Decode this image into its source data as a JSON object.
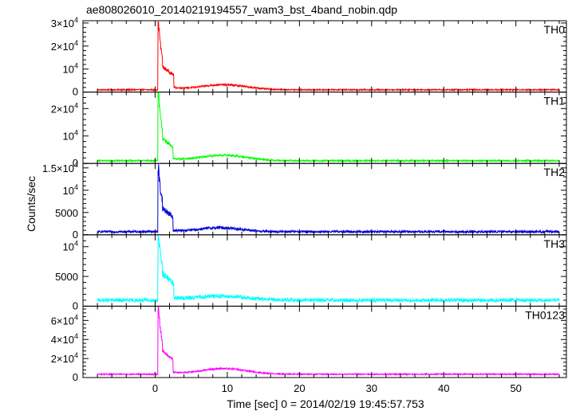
{
  "title": "ae808026010_20140219194557_wam3_bst_4band_nobin.qdp",
  "chart_data": {
    "type": "line",
    "title": "ae808026010_20140219194557_wam3_bst_4band_nobin.qdp",
    "xlabel": "Time [sec] 0 = 2014/02/19 19:45:57.753",
    "ylabel": "Counts/sec",
    "xlim": [
      -10,
      57
    ],
    "x_ticks": [
      0,
      10,
      20,
      30,
      40,
      50
    ],
    "x_data_range": [
      -8,
      56
    ],
    "panels": [
      {
        "name": "TH0",
        "color": "#ff0000",
        "ylim": [
          0,
          31000
        ],
        "y_ticks": [
          {
            "v": 0,
            "label": "0"
          },
          {
            "v": 10000,
            "label": "10",
            "sup": "4"
          },
          {
            "v": 20000,
            "label": "2×10",
            "sup": "4"
          },
          {
            "v": 30000,
            "label": "3×10",
            "sup": "4"
          }
        ],
        "profile": {
          "baseline": 1000,
          "noise": 250,
          "peak_t": 0.5,
          "peak": 30000,
          "plateau": 11000,
          "plateau_t": [
            1.0,
            2.6
          ],
          "drop_to": 1800,
          "bump_center": 9.5,
          "bump_sigma": 4.5,
          "bump_amp": 2200
        }
      },
      {
        "name": "TH1",
        "color": "#00ff00",
        "ylim": [
          0,
          26000
        ],
        "y_ticks": [
          {
            "v": 0,
            "label": "0"
          },
          {
            "v": 10000,
            "label": "10",
            "sup": "4"
          },
          {
            "v": 20000,
            "label": "2×10",
            "sup": "4"
          }
        ],
        "profile": {
          "baseline": 1000,
          "noise": 250,
          "peak_t": 0.5,
          "peak": 25000,
          "plateau": 9000,
          "plateau_t": [
            1.0,
            2.5
          ],
          "drop_to": 1600,
          "bump_center": 9.5,
          "bump_sigma": 4.5,
          "bump_amp": 2000
        }
      },
      {
        "name": "TH2",
        "color": "#0000d8",
        "ylim": [
          0,
          16000
        ],
        "y_ticks": [
          {
            "v": 0,
            "label": "0"
          },
          {
            "v": 5000,
            "label": "5000"
          },
          {
            "v": 10000,
            "label": "10",
            "sup": "4"
          },
          {
            "v": 15000,
            "label": "1.5×10",
            "sup": "4"
          }
        ],
        "profile": {
          "baseline": 700,
          "noise": 250,
          "peak_t": 0.5,
          "peak": 14500,
          "plateau": 6000,
          "plateau_t": [
            1.0,
            2.5
          ],
          "drop_to": 900,
          "bump_center": 9,
          "bump_sigma": 4,
          "bump_amp": 900
        }
      },
      {
        "name": "TH3",
        "color": "#00ffff",
        "ylim": [
          0,
          12000
        ],
        "y_ticks": [
          {
            "v": 0,
            "label": "0"
          },
          {
            "v": 5000,
            "label": "5000"
          },
          {
            "v": 10000,
            "label": "10",
            "sup": "4"
          }
        ],
        "profile": {
          "baseline": 1000,
          "noise": 300,
          "peak_t": 0.5,
          "peak": 11500,
          "plateau": 5500,
          "plateau_t": [
            1.0,
            2.6
          ],
          "drop_to": 1300,
          "bump_center": 9,
          "bump_sigma": 5,
          "bump_amp": 700
        }
      },
      {
        "name": "TH0123",
        "color": "#ff00ff",
        "ylim": [
          0,
          75000
        ],
        "y_ticks": [
          {
            "v": 0,
            "label": "0"
          },
          {
            "v": 20000,
            "label": "2×10",
            "sup": "4"
          },
          {
            "v": 40000,
            "label": "4×10",
            "sup": "4"
          },
          {
            "v": 60000,
            "label": "6×10",
            "sup": "4"
          }
        ],
        "profile": {
          "baseline": 3500,
          "noise": 600,
          "peak_t": 0.5,
          "peak": 72000,
          "plateau": 28000,
          "plateau_t": [
            1.0,
            2.5
          ],
          "drop_to": 5000,
          "bump_center": 9.5,
          "bump_sigma": 4.5,
          "bump_amp": 6000
        }
      }
    ],
    "grid": false,
    "legend": "panel-labels top-right"
  }
}
